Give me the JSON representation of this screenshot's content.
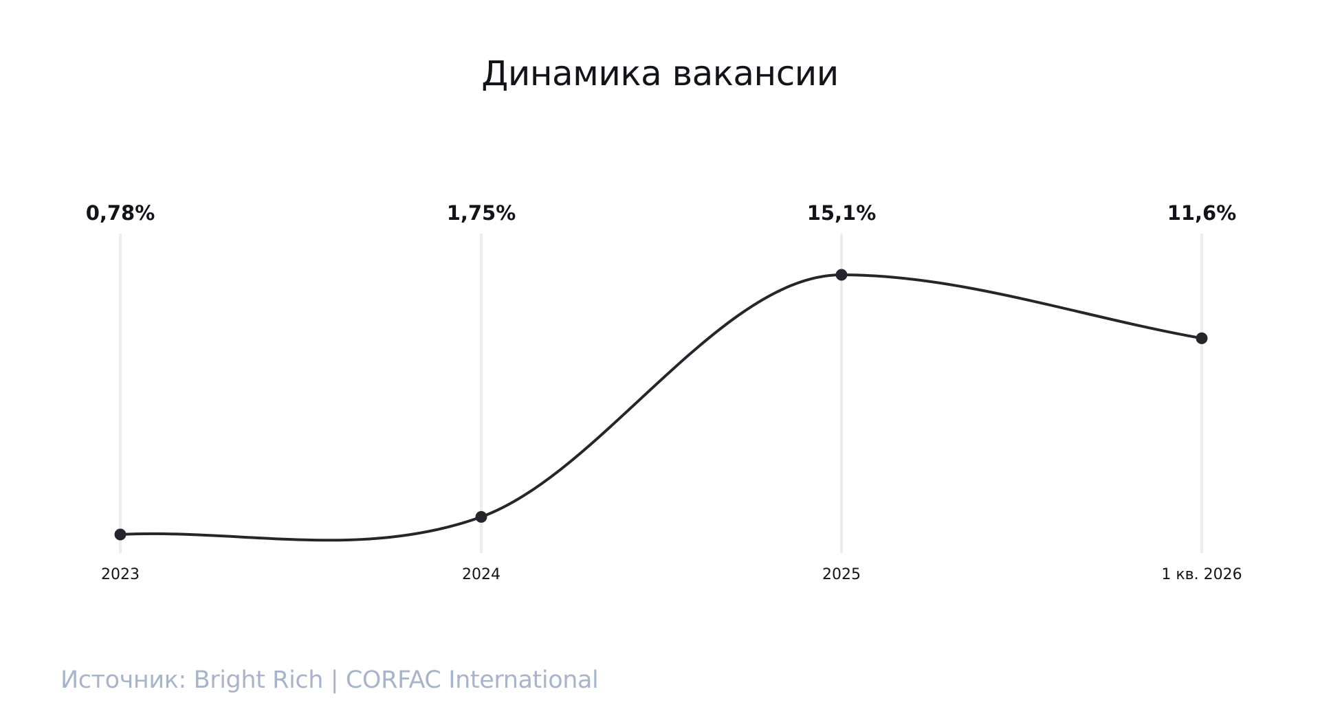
{
  "chart_data": {
    "type": "line",
    "title": "Динамика вакансии",
    "categories": [
      "2023",
      "2024",
      "2025",
      "1 кв. 2026"
    ],
    "values": [
      0.78,
      1.75,
      15.1,
      11.6
    ],
    "value_labels": [
      "0,78%",
      "1,75%",
      "15,1%",
      "11,6%"
    ],
    "xlabel": "",
    "ylabel": "",
    "grid": "vertical",
    "legend": "none",
    "colors": {
      "line": "#23272c",
      "marker": "#23272c",
      "gridline": "#ededed",
      "source_text": "#a8b4c9"
    }
  },
  "footer": {
    "source": "Источник: Bright Rich | CORFAC International"
  }
}
